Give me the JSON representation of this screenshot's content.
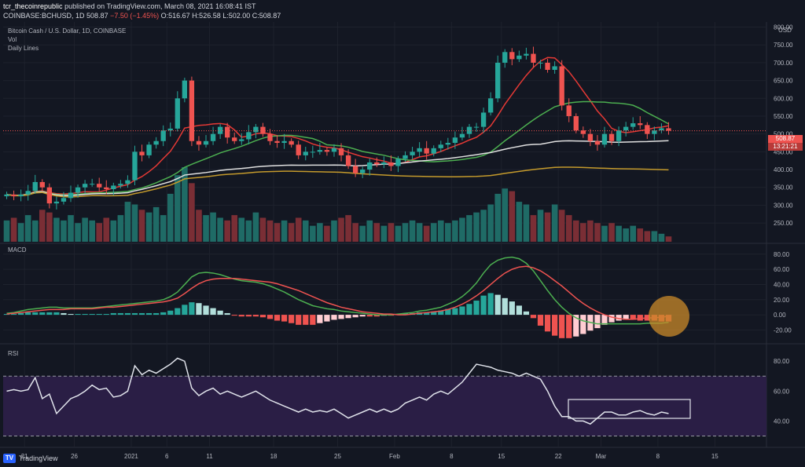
{
  "header": {
    "publisher": "tcr_thecoinrepublic",
    "published_text": "published on TradingView.com, March 08, 2021 16:08:41 IST",
    "symbol": "COINBASE:BCHUSD, 1D",
    "last": "508.87",
    "change": "−7.50 (−1.45%)",
    "ohlc": "O:516.67 H:526.58 L:502.00 C:508.87"
  },
  "panes": {
    "price_title": "Bitcoin Cash / U.S. Dollar, 1D, COINBASE",
    "vol_label": "Vol",
    "daily_lines_label": "Daily Lines",
    "macd_label": "MACD",
    "rsi_label": "RSI",
    "currency": "USD"
  },
  "price_box": {
    "value": "508.87",
    "countdown": "13:21:21"
  },
  "brand": {
    "name": "TradingView",
    "logo_icon": "tradingview-logo-icon"
  },
  "colors": {
    "bg": "#131722",
    "up": "#26a69a",
    "down": "#ef5350",
    "ma_red": "#e53935",
    "ma_green": "#4caf50",
    "ma_white": "#e0e0e0",
    "ma_gold": "#c49a2c",
    "rsi_band": "#2a1e45",
    "highlight_circle": "#c98a2a"
  },
  "chart_data": [
    {
      "type": "candlestick",
      "title": "Bitcoin Cash / U.S. Dollar, 1D, COINBASE",
      "y_axis_ticks": [
        250,
        300,
        350,
        400,
        450,
        500,
        550,
        600,
        650,
        700,
        750,
        800
      ],
      "x_axis_ticks": [
        "21",
        "26",
        "2021",
        "6",
        "11",
        "18",
        "25",
        "Feb",
        "8",
        "15",
        "22",
        "Mar",
        "8",
        "15"
      ],
      "ylim": [
        215,
        810
      ],
      "candles_close": [
        330,
        325,
        330,
        340,
        365,
        350,
        305,
        310,
        320,
        335,
        350,
        360,
        360,
        350,
        345,
        355,
        360,
        370,
        450,
        440,
        470,
        480,
        510,
        515,
        600,
        650,
        480,
        470,
        480,
        500,
        520,
        490,
        480,
        485,
        505,
        520,
        500,
        480,
        475,
        480,
        470,
        440,
        450,
        450,
        455,
        450,
        460,
        440,
        410,
        390,
        400,
        420,
        415,
        420,
        410,
        430,
        440,
        450,
        460,
        445,
        460,
        470,
        475,
        490,
        500,
        520,
        520,
        560,
        600,
        700,
        730,
        710,
        720,
        725,
        700,
        700,
        680,
        690,
        580,
        550,
        510,
        500,
        480,
        470,
        500,
        480,
        510,
        520,
        530,
        525,
        500,
        510,
        516,
        508.87
      ],
      "series": [
        {
          "name": "Red MA",
          "last": 530
        },
        {
          "name": "Green MA",
          "last": 510
        },
        {
          "name": "White MA",
          "last": 455
        },
        {
          "name": "Gold MA",
          "last": 388
        }
      ]
    },
    {
      "type": "bar",
      "title": "Vol",
      "values": [
        8,
        9,
        7,
        10,
        8,
        12,
        11,
        9,
        8,
        10,
        7,
        9,
        8,
        7,
        9,
        8,
        10,
        15,
        14,
        12,
        11,
        13,
        10,
        18,
        25,
        28,
        22,
        12,
        10,
        11,
        9,
        8,
        10,
        9,
        8,
        11,
        9,
        8,
        7,
        8,
        7,
        9,
        8,
        6,
        7,
        6,
        8,
        9,
        10,
        7,
        6,
        8,
        7,
        6,
        7,
        6,
        7,
        8,
        7,
        6,
        7,
        8,
        7,
        8,
        9,
        10,
        11,
        12,
        14,
        18,
        20,
        19,
        15,
        14,
        10,
        12,
        11,
        14,
        12,
        10,
        8,
        7,
        8,
        7,
        6,
        7,
        6,
        5,
        6,
        5,
        4,
        4,
        3,
        2
      ]
    },
    {
      "type": "line",
      "title": "MACD",
      "y_axis_ticks": [
        -20,
        0,
        20,
        40,
        60,
        80
      ],
      "ylim": [
        -32,
        86
      ],
      "series": [
        {
          "name": "MACD",
          "color": "#4caf50",
          "values": [
            2,
            3,
            5,
            7,
            8,
            9,
            10,
            10,
            9,
            9,
            9,
            9,
            9,
            10,
            11,
            12,
            13,
            14,
            15,
            16,
            17,
            18,
            20,
            24,
            30,
            40,
            50,
            55,
            56,
            55,
            53,
            50,
            47,
            45,
            44,
            43,
            41,
            38,
            34,
            30,
            25,
            20,
            16,
            12,
            10,
            8,
            7,
            5,
            4,
            3,
            2,
            1,
            0,
            0,
            0,
            1,
            2,
            3,
            5,
            6,
            8,
            10,
            14,
            18,
            24,
            32,
            42,
            55,
            66,
            72,
            75,
            76,
            74,
            68,
            58,
            45,
            32,
            20,
            10,
            2,
            -4,
            -8,
            -10,
            -12,
            -12,
            -12,
            -12,
            -12,
            -12,
            -12,
            -11,
            -11,
            -11,
            -10
          ]
        },
        {
          "name": "Signal",
          "color": "#ef5350",
          "values": [
            1,
            2,
            3,
            4,
            5,
            6,
            7,
            7,
            7,
            8,
            8,
            8,
            8,
            9,
            10,
            10,
            11,
            12,
            13,
            14,
            15,
            16,
            17,
            19,
            22,
            28,
            35,
            41,
            45,
            47,
            48,
            48,
            48,
            47,
            46,
            45,
            44,
            43,
            41,
            38,
            35,
            32,
            28,
            24,
            20,
            16,
            13,
            10,
            8,
            6,
            4,
            3,
            2,
            1,
            1,
            0,
            0,
            1,
            2,
            3,
            4,
            5,
            7,
            10,
            14,
            19,
            25,
            32,
            40,
            48,
            55,
            60,
            63,
            64,
            62,
            58,
            52,
            45,
            38,
            30,
            22,
            15,
            9,
            4,
            0,
            -3,
            -5,
            -6,
            -6,
            -5,
            -4,
            -4,
            -3,
            -2
          ]
        }
      ]
    },
    {
      "type": "line",
      "title": "RSI",
      "y_axis_ticks": [
        40,
        60,
        80
      ],
      "ylim": [
        25,
        88
      ],
      "band": [
        30,
        70
      ],
      "values": [
        60,
        61,
        60,
        61,
        69,
        55,
        58,
        45,
        50,
        55,
        57,
        60,
        64,
        61,
        62,
        56,
        57,
        60,
        77,
        71,
        74,
        72,
        75,
        78,
        82,
        80,
        62,
        57,
        60,
        62,
        58,
        60,
        58,
        56,
        58,
        60,
        57,
        54,
        52,
        50,
        48,
        46,
        48,
        46,
        47,
        46,
        48,
        45,
        42,
        44,
        46,
        48,
        46,
        48,
        46,
        48,
        52,
        54,
        56,
        54,
        58,
        60,
        58,
        62,
        66,
        72,
        78,
        77,
        76,
        74,
        73,
        72,
        70,
        72,
        70,
        68,
        60,
        50,
        43,
        43,
        40,
        40,
        38,
        42,
        46,
        46,
        44,
        44,
        46,
        47,
        45,
        44,
        46,
        45
      ]
    }
  ]
}
